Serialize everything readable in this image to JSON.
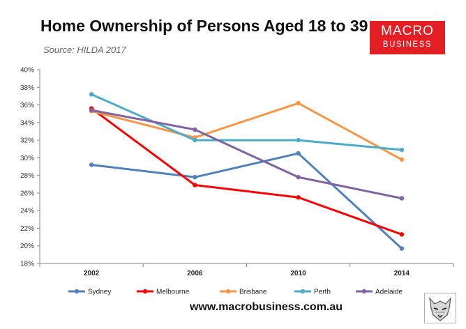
{
  "header": {
    "title": "Home Ownership of Persons Aged 18 to 39",
    "source": "Source: HILDA 2017"
  },
  "brand": {
    "line1": "MACRO",
    "line2": "BUSINESS",
    "color": "#e31e24"
  },
  "footer": {
    "url": "www.macrobusiness.com.au",
    "logo_icon": "wolf-icon"
  },
  "chart_data": {
    "type": "line",
    "title": "Home Ownership of Persons Aged 18 to 39",
    "xlabel": "",
    "ylabel": "",
    "categories": [
      "2002",
      "2006",
      "2010",
      "2014"
    ],
    "ylim": [
      0.18,
      0.4
    ],
    "yticks": [
      "18%",
      "20%",
      "22%",
      "24%",
      "26%",
      "28%",
      "30%",
      "32%",
      "34%",
      "36%",
      "38%",
      "40%"
    ],
    "ytick_values": [
      0.18,
      0.2,
      0.22,
      0.24,
      0.26,
      0.28,
      0.3,
      0.32,
      0.34,
      0.36,
      0.38,
      0.4
    ],
    "legend_position": "bottom",
    "grid": false,
    "series": [
      {
        "name": "Sydney",
        "color": "#4f81bd",
        "values": [
          0.292,
          0.278,
          0.305,
          0.197
        ]
      },
      {
        "name": "Melbourne",
        "color": "#ff0000",
        "values": [
          0.356,
          0.269,
          0.255,
          0.213
        ]
      },
      {
        "name": "Brisbane",
        "color": "#f79646",
        "values": [
          0.353,
          0.323,
          0.362,
          0.298
        ]
      },
      {
        "name": "Perth",
        "color": "#4bacc6",
        "values": [
          0.372,
          0.32,
          0.32,
          0.309
        ]
      },
      {
        "name": "Adelaide",
        "color": "#8064a2",
        "values": [
          0.354,
          0.332,
          0.278,
          0.254
        ]
      }
    ]
  }
}
